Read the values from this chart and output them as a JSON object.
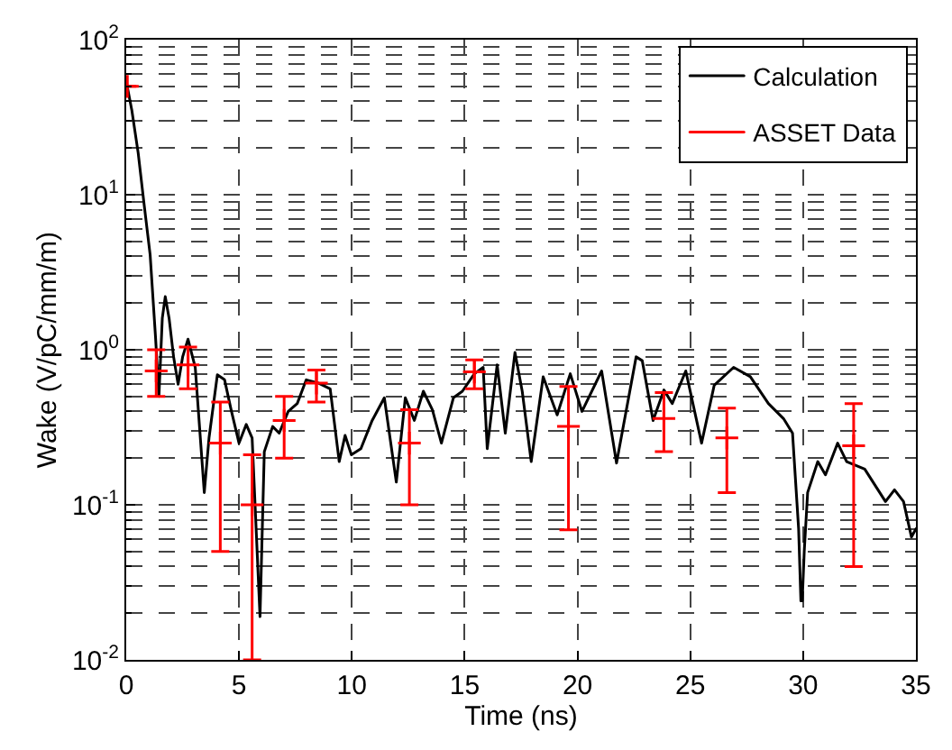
{
  "chart_data": {
    "type": "line",
    "xlabel": "Time (ns)",
    "ylabel": "Wake (V/pC/mm/m)",
    "log": "y",
    "grid": true,
    "legend": "top right",
    "xlim": [
      0,
      35
    ],
    "xticks": [
      0,
      5,
      10,
      15,
      20,
      25,
      30,
      35
    ],
    "ylim": [
      0.01,
      100
    ],
    "yticks": [
      {
        "value": 0.01,
        "label": "10$^{-2}$"
      },
      {
        "value": 0.1,
        "label": "10$^{-1}$"
      },
      {
        "value": 1,
        "label": "10$^{0}$"
      },
      {
        "value": 10,
        "label": "10$^{1}$"
      },
      {
        "value": 100,
        "label": "10$^{2}$"
      }
    ],
    "series": [
      {
        "name": "Calculation",
        "color": "#000000",
        "line_style": "solid",
        "x": [
          0,
          0.25,
          0.53,
          0.8,
          1.06,
          1.3,
          1.45,
          1.6,
          1.73,
          1.9,
          2.1,
          2.3,
          2.5,
          2.74,
          3.06,
          3.46,
          3.67,
          4.04,
          4.36,
          4.65,
          5.0,
          5.32,
          5.58,
          5.93,
          6.12,
          6.49,
          6.78,
          7.18,
          7.58,
          7.98,
          8.51,
          9.04,
          9.44,
          9.7,
          9.98,
          10.4,
          10.9,
          11.44,
          11.97,
          12.37,
          12.77,
          13.17,
          13.57,
          13.97,
          14.5,
          14.9,
          15.43,
          15.82,
          16.0,
          16.44,
          16.8,
          17.23,
          17.55,
          17.95,
          18.48,
          19.1,
          19.68,
          20.2,
          21.07,
          21.73,
          22.6,
          22.87,
          23.35,
          23.83,
          24.2,
          24.8,
          25.5,
          26.06,
          26.92,
          27.66,
          28.46,
          29.13,
          29.53,
          29.8,
          29.9,
          29.96,
          30.05,
          30.2,
          30.65,
          30.99,
          31.53,
          31.93,
          32.73,
          33.65,
          34.05,
          34.45,
          34.8,
          35
        ],
        "values": [
          54,
          35,
          18.6,
          8.5,
          4.1,
          1.2,
          0.5,
          1.6,
          2.2,
          1.6,
          0.9,
          0.6,
          0.9,
          1.17,
          0.77,
          0.12,
          0.27,
          0.69,
          0.64,
          0.41,
          0.25,
          0.33,
          0.27,
          0.019,
          0.22,
          0.32,
          0.29,
          0.4,
          0.45,
          0.64,
          0.61,
          0.56,
          0.19,
          0.28,
          0.21,
          0.23,
          0.35,
          0.49,
          0.14,
          0.49,
          0.35,
          0.54,
          0.41,
          0.25,
          0.49,
          0.54,
          0.7,
          0.77,
          0.23,
          0.8,
          0.29,
          0.96,
          0.54,
          0.19,
          0.67,
          0.38,
          0.7,
          0.4,
          0.73,
          0.186,
          0.9,
          0.85,
          0.35,
          0.55,
          0.45,
          0.73,
          0.25,
          0.59,
          0.77,
          0.67,
          0.45,
          0.36,
          0.29,
          0.07,
          0.024,
          0.024,
          0.05,
          0.12,
          0.19,
          0.156,
          0.25,
          0.19,
          0.17,
          0.105,
          0.125,
          0.105,
          0.062,
          0.07
        ]
      },
      {
        "name": "ASSET Data",
        "type": "scatter",
        "color": "#ff0000",
        "marker": "cross",
        "x": [
          0.05,
          1.33,
          2.74,
          4.17,
          5.58,
          7.0,
          8.43,
          12.55,
          15.43,
          19.6,
          23.83,
          26.62,
          32.24
        ],
        "values": [
          50,
          0.73,
          0.8,
          0.25,
          0.1,
          0.35,
          0.61,
          0.25,
          0.72,
          0.32,
          0.36,
          0.27,
          0.24
        ],
        "errors": [
          null,
          [
            0.5,
            1.0
          ],
          [
            0.56,
            1.04
          ],
          [
            0.05,
            0.46
          ],
          [
            0.01,
            0.21
          ],
          [
            0.2,
            0.5
          ],
          [
            0.46,
            0.74
          ],
          [
            0.1,
            0.41
          ],
          [
            0.56,
            0.86
          ],
          [
            0.069,
            0.58
          ],
          [
            0.22,
            0.53
          ],
          [
            0.12,
            0.42
          ],
          [
            0.04,
            0.45
          ]
        ]
      }
    ]
  }
}
